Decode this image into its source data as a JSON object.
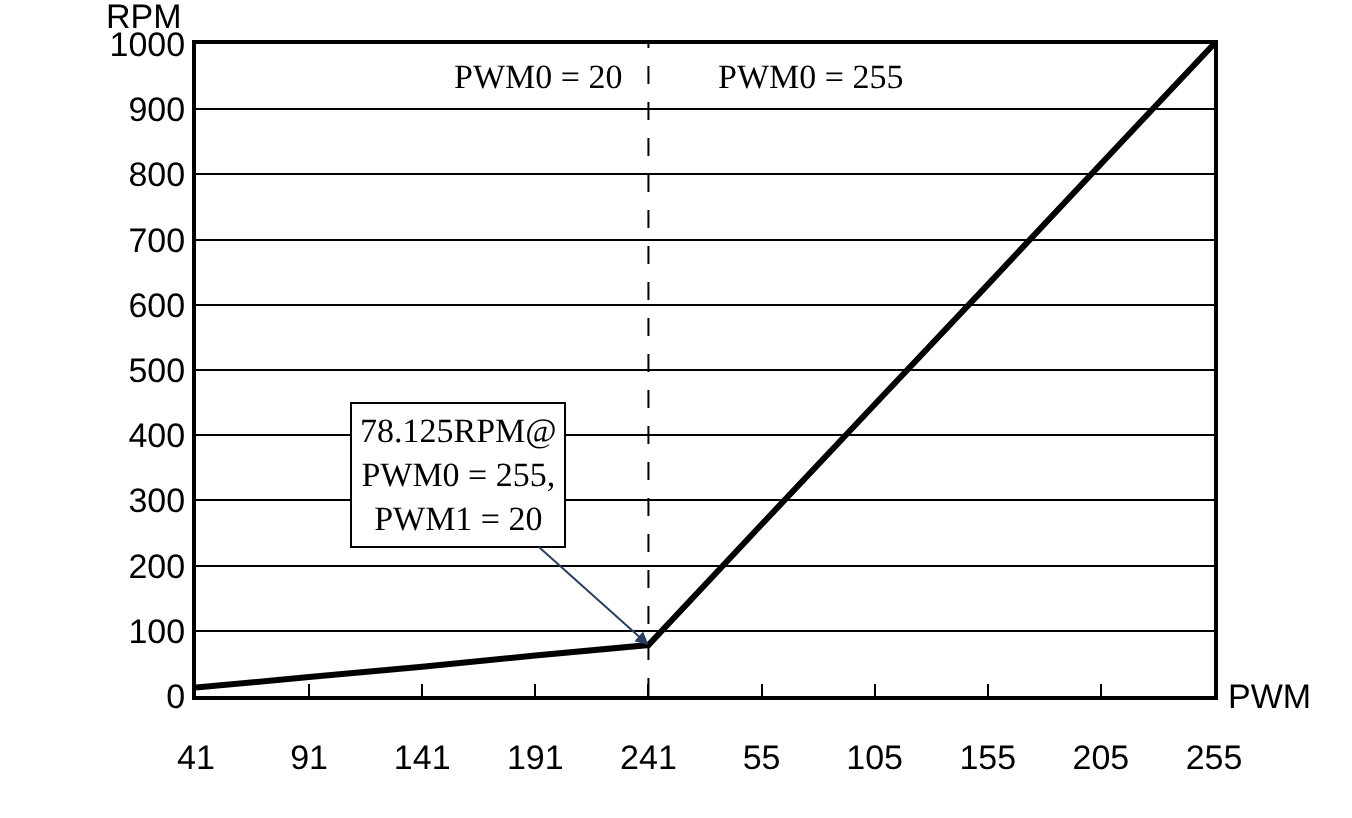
{
  "chart_data": {
    "type": "line",
    "xlabel": "PWM",
    "ylabel": "RPM",
    "categories": [
      "41",
      "91",
      "141",
      "191",
      "241",
      "55",
      "105",
      "155",
      "205",
      "255"
    ],
    "series": [
      {
        "color": "#000000",
        "values": [
          13,
          29,
          45,
          62,
          78.125,
          263,
          447,
          631,
          816,
          1000
        ]
      }
    ],
    "ylim": [
      0,
      1000
    ],
    "yticks": [
      0,
      100,
      200,
      300,
      400,
      500,
      600,
      700,
      800,
      900,
      1000
    ],
    "grid": "y",
    "marker": "none",
    "line_style": "solid",
    "ref_lines": [
      {
        "axis": "x",
        "value": "241",
        "line_style": "dashed",
        "color": "#000000"
      }
    ],
    "annotations": [
      "PWM0 = 20",
      "PWM0 = 255",
      {
        "text": "78.125RPM@\nPWM0 = 255,\nPWM1 = 20",
        "x": "241",
        "y": 78.125
      }
    ]
  }
}
